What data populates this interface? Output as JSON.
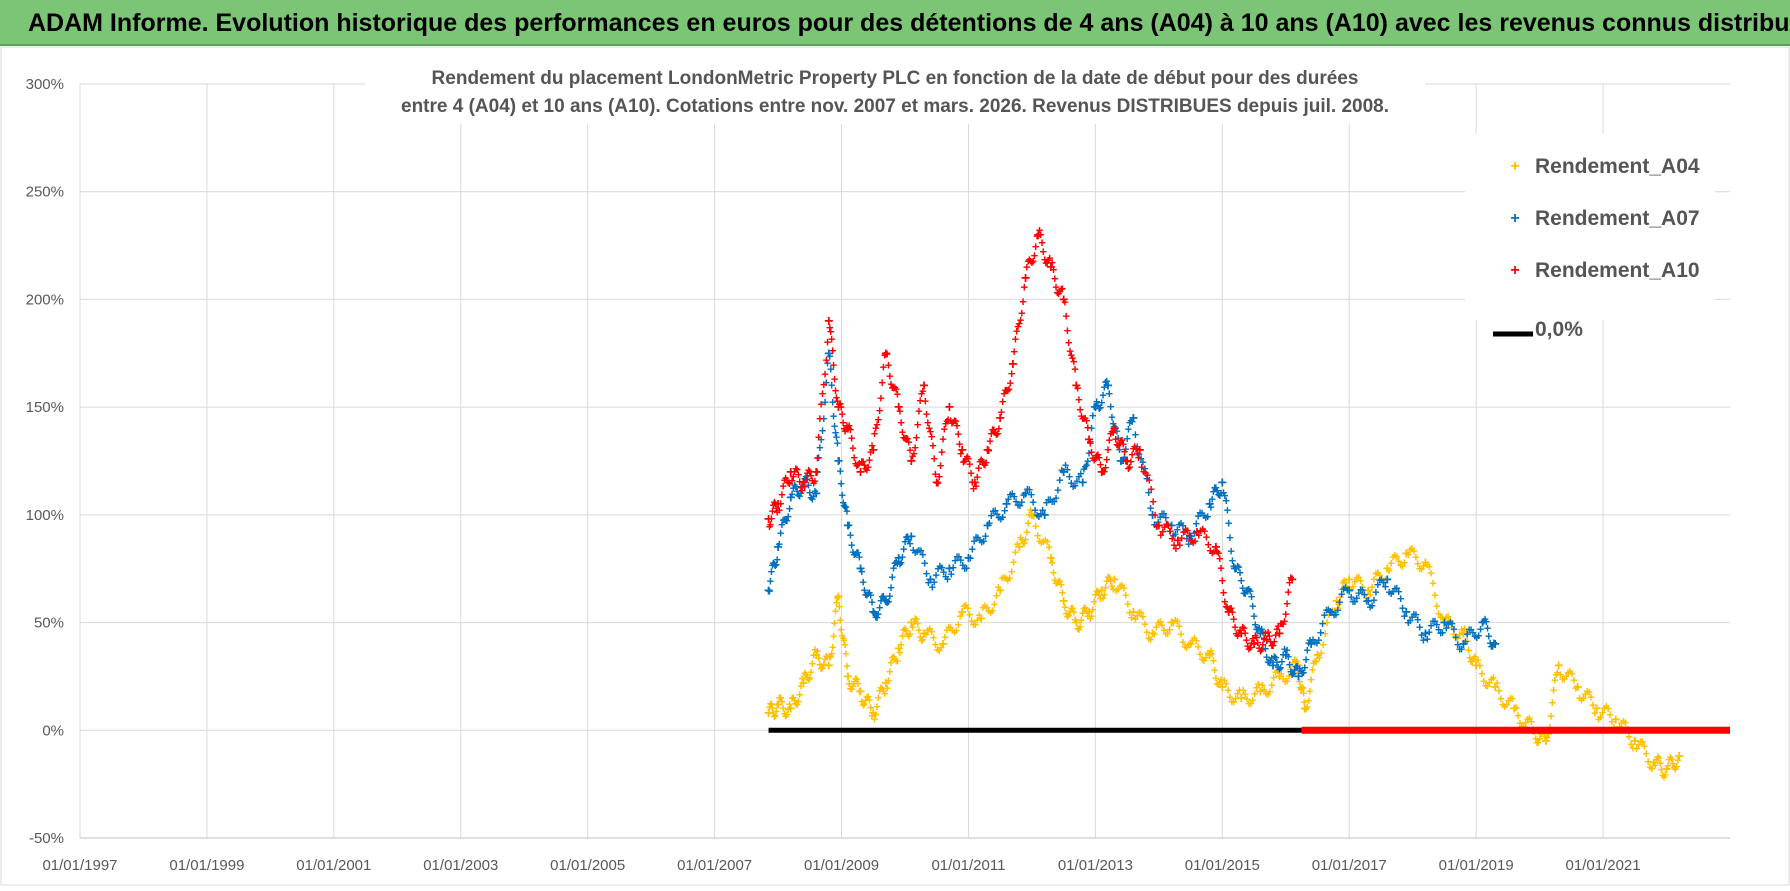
{
  "banner": {
    "text": "ADAM Informe. Evolution historique des performances en euros pour des détentions de 4 ans (A04) à 10 ans (A10) avec les revenus connus distribués",
    "color": "#7cc576"
  },
  "chart_data": {
    "type": "scatter",
    "title_line1": "Rendement du placement LondonMetric Property PLC en fonction de la date de début pour des durées",
    "title_line2": "entre 4 (A04) et 10 ans (A10). Cotations entre nov. 2007 et mars. 2026. Revenus DISTRIBUES depuis juil. 2008.",
    "xlabel": "",
    "ylabel": "",
    "xlim": [
      1997.0,
      2023.0
    ],
    "ylim": [
      -50,
      300
    ],
    "x_ticks": [
      1997,
      1999,
      2001,
      2003,
      2005,
      2007,
      2009,
      2011,
      2013,
      2015,
      2017,
      2019,
      2021
    ],
    "x_tick_labels": [
      "01/01/1997",
      "01/01/1999",
      "01/01/2001",
      "01/01/2003",
      "01/01/2005",
      "01/01/2007",
      "01/01/2009",
      "01/01/2011",
      "01/01/2013",
      "01/01/2015",
      "01/01/2017",
      "01/01/2019",
      "01/01/2021"
    ],
    "y_ticks": [
      -50,
      0,
      50,
      100,
      150,
      200,
      250,
      300
    ],
    "y_tick_labels": [
      "-50%",
      "0%",
      "50%",
      "100%",
      "150%",
      "200%",
      "250%",
      "300%"
    ],
    "grid": true,
    "legend_position": "top-right",
    "series": [
      {
        "name": "Rendement_A04",
        "color": "#ffc000",
        "x": [
          2007.85,
          2008.0,
          2008.2,
          2008.4,
          2008.6,
          2008.8,
          2008.95,
          2009.1,
          2009.3,
          2009.5,
          2009.7,
          2009.9,
          2010.1,
          2010.3,
          2010.6,
          2010.9,
          2011.2,
          2011.5,
          2011.8,
          2012.0,
          2012.3,
          2012.5,
          2012.7,
          2012.9,
          2013.1,
          2013.3,
          2013.6,
          2013.9,
          2014.2,
          2014.5,
          2014.8,
          2015.0,
          2015.3,
          2015.6,
          2015.9,
          2016.2,
          2016.3,
          2016.5,
          2016.8,
          2017.0,
          2017.3,
          2017.6,
          2017.9,
          2018.2,
          2018.5,
          2018.8,
          2019.0,
          2019.3,
          2019.6,
          2019.9,
          2020.1,
          2020.3,
          2020.6,
          2020.9,
          2021.2,
          2021.5,
          2021.8,
          2022.0,
          2022.2
        ],
        "y": [
          8,
          12,
          10,
          22,
          35,
          30,
          62,
          25,
          18,
          8,
          22,
          38,
          50,
          45,
          40,
          55,
          52,
          65,
          85,
          100,
          80,
          60,
          50,
          55,
          65,
          70,
          55,
          45,
          50,
          40,
          35,
          20,
          15,
          18,
          25,
          30,
          10,
          35,
          60,
          70,
          65,
          75,
          82,
          78,
          50,
          45,
          30,
          20,
          10,
          0,
          -5,
          30,
          20,
          10,
          5,
          -5,
          -15,
          -18,
          -12
        ]
      },
      {
        "name": "Rendement_A07",
        "color": "#0070c0",
        "x": [
          2007.85,
          2008.0,
          2008.2,
          2008.4,
          2008.6,
          2008.8,
          2008.95,
          2009.1,
          2009.3,
          2009.5,
          2009.7,
          2009.9,
          2010.1,
          2010.4,
          2010.7,
          2011.0,
          2011.3,
          2011.6,
          2011.9,
          2012.2,
          2012.5,
          2012.8,
          2013.0,
          2013.2,
          2013.4,
          2013.6,
          2013.9,
          2014.2,
          2014.5,
          2014.8,
          2015.0,
          2015.2,
          2015.4,
          2015.6,
          2015.8,
          2016.0,
          2016.2,
          2016.4,
          2016.7,
          2017.0,
          2017.3,
          2017.6,
          2017.9,
          2018.2,
          2018.5,
          2018.8,
          2019.1,
          2019.3
        ],
        "y": [
          65,
          85,
          108,
          115,
          110,
          175,
          125,
          95,
          75,
          55,
          60,
          80,
          90,
          70,
          75,
          80,
          95,
          105,
          110,
          100,
          120,
          115,
          150,
          160,
          125,
          145,
          100,
          95,
          90,
          105,
          115,
          75,
          65,
          45,
          30,
          35,
          25,
          40,
          55,
          65,
          60,
          70,
          55,
          45,
          50,
          40,
          50,
          40
        ]
      },
      {
        "name": "Rendement_A10",
        "color": "#ff0000",
        "x": [
          2007.85,
          2008.0,
          2008.2,
          2008.4,
          2008.6,
          2008.8,
          2008.95,
          2009.1,
          2009.3,
          2009.5,
          2009.7,
          2009.9,
          2010.1,
          2010.3,
          2010.5,
          2010.7,
          2010.9,
          2011.1,
          2011.3,
          2011.5,
          2011.7,
          2011.9,
          2012.1,
          2012.3,
          2012.5,
          2012.7,
          2012.9,
          2013.1,
          2013.3,
          2013.5,
          2013.7,
          2014.0,
          2014.3,
          2014.6,
          2014.9,
          2015.1,
          2015.3,
          2015.5,
          2015.7,
          2015.9,
          2016.1
        ],
        "y": [
          98,
          105,
          120,
          115,
          120,
          190,
          150,
          140,
          120,
          130,
          175,
          150,
          125,
          160,
          115,
          150,
          130,
          115,
          130,
          145,
          170,
          210,
          230,
          215,
          200,
          160,
          135,
          120,
          140,
          125,
          130,
          95,
          88,
          92,
          85,
          55,
          45,
          40,
          42,
          45,
          70
        ]
      },
      {
        "name": "0,0%",
        "color": "#000000",
        "x": [
          2007.85,
          2016.25
        ],
        "y": [
          0,
          0
        ]
      }
    ],
    "zero_red_segment": {
      "x_start": 2016.25,
      "x_end": 2023.0,
      "y": 0,
      "color": "#ff0000"
    }
  }
}
